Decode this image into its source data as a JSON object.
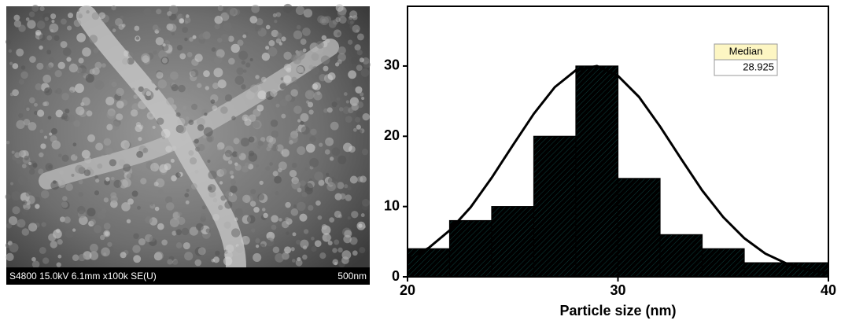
{
  "chart_data": {
    "type": "histogram",
    "image_caption": "S4800 15.0kV 6.1mm x100k SE(U)",
    "scale_bar_label": "500nm",
    "xlabel": "Particle size (nm)",
    "bins": [
      20,
      22,
      24,
      26,
      28,
      30,
      32,
      34,
      36,
      38,
      40
    ],
    "values": [
      4,
      8,
      10,
      20,
      30,
      14,
      6,
      4,
      2,
      2
    ],
    "color": "#1b7b78",
    "curve": {
      "color": "#000000",
      "x": [
        20,
        21,
        22,
        23,
        24,
        25,
        26,
        27,
        28,
        29,
        30,
        31,
        32,
        33,
        34,
        35,
        36,
        37,
        38,
        39,
        40
      ],
      "y": [
        2.4,
        4.1,
        6.6,
        9.9,
        14.1,
        18.7,
        23.2,
        27.0,
        29.4,
        30.0,
        28.6,
        25.6,
        21.4,
        16.8,
        12.3,
        8.5,
        5.5,
        3.3,
        1.9,
        1.0,
        0.5
      ]
    },
    "stat_box": {
      "header": "Median",
      "value": "28.925"
    },
    "xlim": [
      20,
      40
    ],
    "xticks": [
      20,
      30,
      40
    ],
    "ylim": [
      0,
      38.5
    ],
    "yticks": [
      0,
      10,
      20,
      30
    ]
  }
}
